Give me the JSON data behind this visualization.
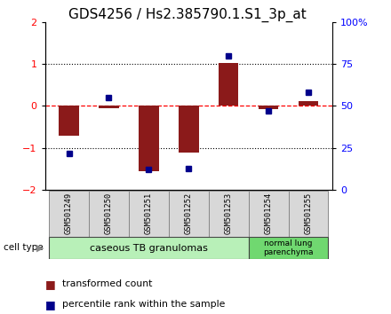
{
  "title": "GDS4256 / Hs2.385790.1.S1_3p_at",
  "samples": [
    "GSM501249",
    "GSM501250",
    "GSM501251",
    "GSM501252",
    "GSM501253",
    "GSM501254",
    "GSM501255"
  ],
  "red_values": [
    -0.7,
    -0.05,
    -1.55,
    -1.1,
    1.02,
    -0.07,
    0.12
  ],
  "blue_percentiles": [
    22,
    55,
    12,
    13,
    80,
    47,
    58
  ],
  "ylim_left": [
    -2,
    2
  ],
  "ylim_right": [
    0,
    100
  ],
  "yticks_left": [
    -2,
    -1,
    0,
    1,
    2
  ],
  "yticks_right": [
    0,
    25,
    50,
    75,
    100
  ],
  "ytick_labels_right": [
    "0",
    "25",
    "50",
    "75",
    "100%"
  ],
  "red_color": "#8B1A1A",
  "blue_color": "#00008B",
  "bar_width": 0.5,
  "group1_label": "caseous TB granulomas",
  "group2_label": "normal lung\nparenchyma",
  "group1_indices": [
    0,
    1,
    2,
    3,
    4
  ],
  "group2_indices": [
    5,
    6
  ],
  "cell_type_label": "cell type",
  "legend_red": "transformed count",
  "legend_blue": "percentile rank within the sample",
  "group1_color": "#b8f0b8",
  "group2_color": "#70d870",
  "sample_box_color": "#d8d8d8",
  "title_fontsize": 11,
  "tick_fontsize": 8,
  "bg_color": "#ffffff"
}
